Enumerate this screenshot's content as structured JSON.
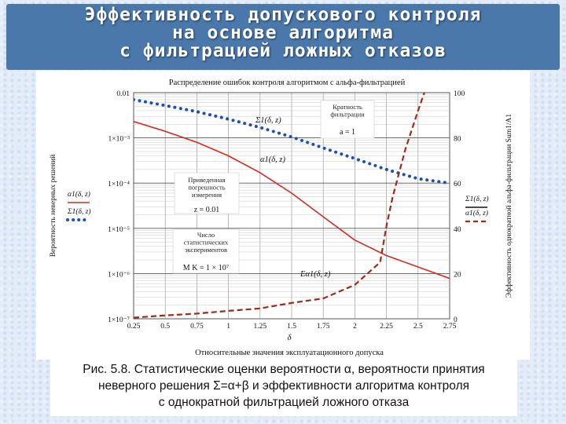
{
  "slide": {
    "title": "Эффективность допускового контроля\nна основе алгоритма\nс фильтрацией ложных отказов",
    "caption": "Рис. 5.8. Статистические оценки вероятности α, вероятности принятия\nневерного решения Σ=α+β и эффективности алгоритма контроля\nс однократной фильтрацией ложного отказа"
  },
  "chart_data": {
    "type": "line",
    "title": "Распределение ошибок контроля алгоритмом с альфа-фильтрацией",
    "xlabel": "Относительные значения эксплуатационного допуска",
    "xvar": "δ",
    "ylabel_left": "Вероятность неверных решений",
    "ylabel_right": "Эффективность однократной альфа-фильтрации Sum1/A1",
    "x_ticks": [
      "0.25",
      "0.5",
      "0.75",
      "1",
      "1.25",
      "1.5",
      "1.75",
      "2",
      "2.25",
      "2.5",
      "2.75"
    ],
    "y_left_ticks": [
      "0.01",
      "1×10⁻³",
      "1×10⁻⁴",
      "1×10⁻⁵",
      "1×10⁻⁶",
      "1×10⁻⁷"
    ],
    "y_right_ticks": [
      "100",
      "80",
      "60",
      "40",
      "20",
      "0"
    ],
    "xlim": [
      0.25,
      2.75
    ],
    "ylim_left": [
      1e-07,
      0.01
    ],
    "yscale_left": "log",
    "ylim_right": [
      0,
      100
    ],
    "grid": true,
    "series": [
      {
        "name": "Σ1(δ, z)",
        "axis": "left",
        "color": "#1f4fb5",
        "style": "dotted",
        "x": [
          0.25,
          0.5,
          0.75,
          1.0,
          1.25,
          1.5,
          1.75,
          2.0,
          2.25,
          2.5,
          2.75
        ],
        "y": [
          0.007,
          0.0052,
          0.0038,
          0.0026,
          0.0017,
          0.00105,
          0.0006,
          0.00035,
          0.0002,
          0.000125,
          0.0001
        ]
      },
      {
        "name": "α1(δ, z)",
        "axis": "left",
        "color": "#d42a20",
        "style": "solid",
        "x": [
          0.25,
          0.5,
          0.75,
          1.0,
          1.25,
          1.5,
          1.75,
          2.0,
          2.25,
          2.5,
          2.75
        ],
        "y": [
          0.0023,
          0.0014,
          0.0008,
          0.0004,
          0.00017,
          6e-05,
          1.8e-05,
          5.5e-06,
          2.5e-06,
          1.4e-06,
          7.8e-07
        ]
      },
      {
        "name": "Eα1(δ, z)",
        "axis": "right",
        "color": "#a02a14",
        "style": "dashed",
        "x": [
          0.25,
          0.5,
          0.75,
          1.0,
          1.25,
          1.5,
          1.75,
          2.0,
          2.2,
          2.25,
          2.3,
          2.4,
          2.5,
          2.55
        ],
        "y": [
          0.5,
          1.5,
          2.3,
          3.5,
          4.6,
          7,
          9,
          15,
          25,
          41,
          54,
          75,
          92,
          100
        ]
      }
    ],
    "annotations": {
      "sigma_label": "Σ1(δ, z)",
      "alpha_label": "α1(δ, z)",
      "e_label": "Eα1(δ, z)",
      "box_filter_title": "Кратность фильтрации",
      "box_filter_value": "a = 1",
      "box_error_title": "Приведенная погрешность измерения",
      "box_error_value": "z = 0.01",
      "box_exp_title": "Число статистических экспериментов",
      "box_exp_value": "M K = 1 × 10⁷"
    },
    "legend_left": [
      "α1(δ, z)",
      "Σ1(δ, z)"
    ],
    "legend_right": [
      "Σ1(δ, z)",
      "α1(δ, z)"
    ],
    "legend_placement": "outside-left and outside-right"
  }
}
